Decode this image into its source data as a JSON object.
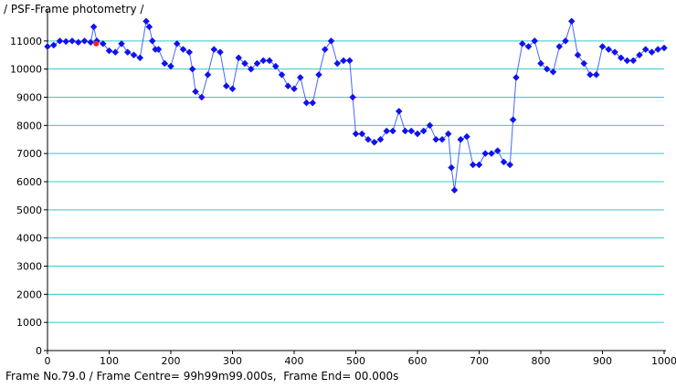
{
  "title": "/ PSF-Frame photometry /",
  "footer": "Frame No.79.0 / Frame Centre= 99h99m99.000s,  Frame End= 00.000s",
  "colors": {
    "grid": "#33cccc",
    "points": "#1111ee",
    "line": "#4466ff",
    "highlight": "#ee2222",
    "axis": "#000000"
  },
  "chart_data": {
    "type": "line",
    "title": "",
    "xlabel": "",
    "ylabel": "",
    "xlim": [
      0,
      1000
    ],
    "ylim": [
      0,
      12000
    ],
    "xticks": [
      0,
      100,
      200,
      300,
      400,
      500,
      600,
      700,
      800,
      900,
      1000
    ],
    "yticks": [
      0,
      1000,
      2000,
      3000,
      4000,
      5000,
      6000,
      7000,
      8000,
      9000,
      10000,
      11000
    ],
    "grid": true,
    "highlight": {
      "x": 79,
      "y": 10900
    },
    "series": [
      {
        "x": [
          0,
          10,
          20,
          30,
          40,
          50,
          60,
          70,
          75,
          80,
          90,
          100,
          110,
          120,
          130,
          140,
          150,
          160,
          165,
          170,
          175,
          180,
          190,
          200,
          210,
          220,
          230,
          235,
          240,
          250,
          260,
          270,
          280,
          290,
          300,
          310,
          320,
          330,
          340,
          350,
          360,
          370,
          380,
          390,
          400,
          410,
          420,
          430,
          440,
          450,
          460,
          470,
          480,
          490,
          495,
          500,
          510,
          520,
          530,
          540,
          550,
          560,
          570,
          580,
          590,
          600,
          610,
          620,
          630,
          640,
          650,
          655,
          660,
          670,
          680,
          690,
          700,
          710,
          720,
          730,
          740,
          750,
          755,
          760,
          770,
          780,
          790,
          800,
          810,
          820,
          830,
          840,
          850,
          860,
          870,
          880,
          890,
          900,
          910,
          920,
          930,
          940,
          950,
          960,
          970,
          980,
          990,
          1000
        ],
        "y": [
          10800,
          10850,
          11000,
          10980,
          11000,
          10950,
          11000,
          10950,
          11500,
          11000,
          10900,
          10650,
          10600,
          10900,
          10600,
          10500,
          10400,
          11700,
          11500,
          11000,
          10700,
          10700,
          10200,
          10100,
          10900,
          10700,
          10600,
          10000,
          9200,
          9000,
          9800,
          10700,
          10600,
          9400,
          9300,
          10400,
          10200,
          10000,
          10200,
          10300,
          10300,
          10100,
          9800,
          9400,
          9300,
          9700,
          8800,
          8800,
          9800,
          10700,
          11000,
          10200,
          10300,
          10300,
          9000,
          7700,
          7700,
          7500,
          7400,
          7500,
          7800,
          7800,
          8500,
          7800,
          7800,
          7700,
          7800,
          8000,
          7500,
          7500,
          7700,
          6500,
          5700,
          7500,
          7600,
          6600,
          6600,
          7000,
          7000,
          7100,
          6700,
          6600,
          8200,
          9700,
          10900,
          10800,
          11000,
          10200,
          10000,
          9900,
          10800,
          11000,
          11700,
          10500,
          10200,
          9800,
          9800,
          10800,
          10700,
          10600,
          10400,
          10300,
          10300,
          10500,
          10700,
          10600,
          10700,
          10750
        ]
      }
    ]
  }
}
